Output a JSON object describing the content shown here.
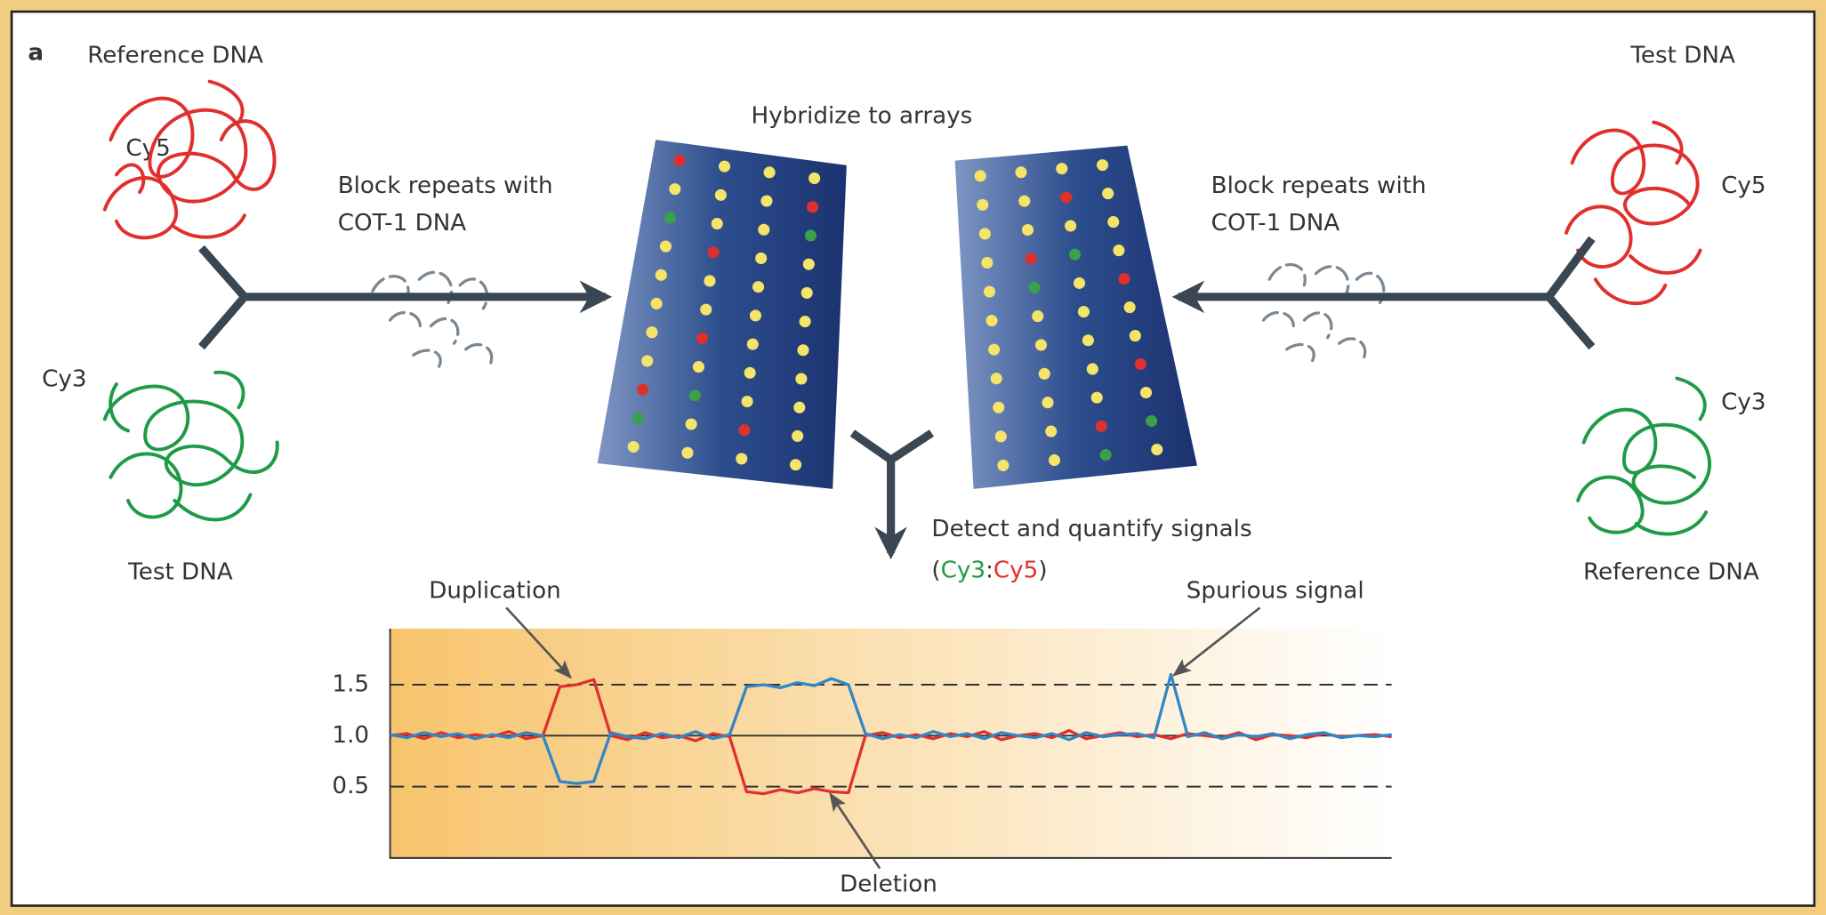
{
  "panel_label": "a",
  "left": {
    "top_sample": "Reference DNA",
    "top_dye": "Cy5",
    "bottom_dye": "Cy3",
    "bottom_sample": "Test DNA",
    "step": [
      "Block repeats with",
      "COT-1 DNA"
    ]
  },
  "right": {
    "top_sample": "Test DNA",
    "top_dye": "Cy5",
    "bottom_dye": "Cy3",
    "bottom_sample": "Reference DNA",
    "step": [
      "Block repeats with",
      "COT-1 DNA"
    ]
  },
  "hybridize": "Hybridize to arrays",
  "detect": "Detect and quantify signals",
  "ratio": {
    "open": "(",
    "numerator": "Cy3",
    "separator": ":",
    "denominator": "Cy5",
    "close": ")"
  },
  "chart_data": {
    "type": "line",
    "ylim": [
      -0.2,
      2.05
    ],
    "yticks": [
      {
        "value": 0.5,
        "label": "0.5"
      },
      {
        "value": 1,
        "label": "1.0"
      },
      {
        "value": 1.5,
        "label": "1.5"
      }
    ],
    "annotations": [
      "Duplication",
      "Deletion",
      "Spurious signal"
    ],
    "series": [
      {
        "color": "#e0302e",
        "values": [
          1.0,
          1.02,
          0.97,
          1.03,
          0.98,
          1.01,
          0.99,
          1.04,
          0.97,
          1.0,
          1.48,
          1.5,
          1.55,
          1.0,
          0.96,
          1.03,
          0.98,
          1.0,
          0.95,
          1.02,
          0.99,
          0.45,
          0.43,
          0.47,
          0.44,
          0.48,
          0.45,
          0.44,
          1.0,
          1.03,
          0.98,
          1.01,
          0.97,
          1.02,
          0.99,
          1.04,
          0.96,
          1.0,
          1.02,
          0.98,
          1.05,
          0.97,
          1.0,
          1.03,
          0.99,
          1.01,
          0.97,
          1.02,
          1.0,
          0.98,
          1.03,
          0.96,
          1.01,
          1.0,
          0.98,
          1.02,
          0.99,
          1.0,
          1.01,
          0.99
        ]
      },
      {
        "color": "#2f86c8",
        "values": [
          1.01,
          0.98,
          1.03,
          0.99,
          1.02,
          0.97,
          1.01,
          0.98,
          1.03,
          1.0,
          0.55,
          0.53,
          0.55,
          1.03,
          0.99,
          0.97,
          1.02,
          0.98,
          1.04,
          0.97,
          1.01,
          1.48,
          1.5,
          1.47,
          1.52,
          1.49,
          1.56,
          1.5,
          1.02,
          0.97,
          1.01,
          0.98,
          1.04,
          0.99,
          1.02,
          0.97,
          1.03,
          1.0,
          0.98,
          1.02,
          0.96,
          1.03,
          0.99,
          1.01,
          1.02,
          0.98,
          1.6,
          0.99,
          1.03,
          0.97,
          1.01,
          0.99,
          1.02,
          0.97,
          1.01,
          1.03,
          0.98,
          1.0,
          0.99,
          1.01
        ]
      }
    ]
  }
}
